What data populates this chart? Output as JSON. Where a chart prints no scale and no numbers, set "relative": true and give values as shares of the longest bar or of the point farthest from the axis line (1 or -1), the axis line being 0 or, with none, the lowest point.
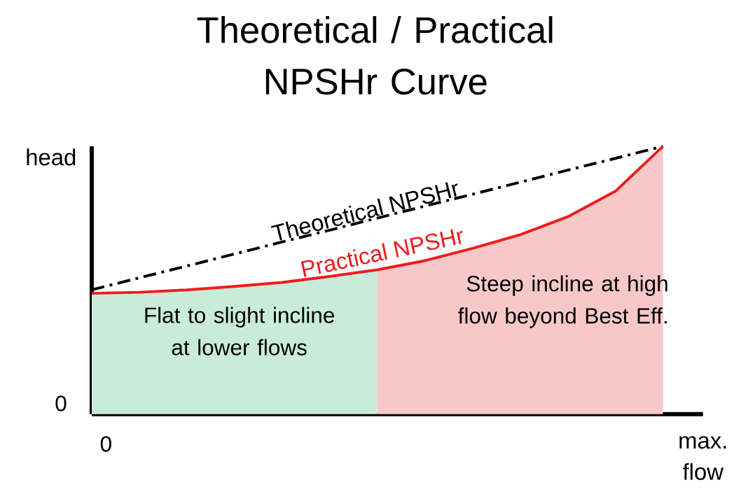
{
  "chart_data": {
    "type": "line",
    "title": "Theoretical / Practical NPSHr Curve",
    "relative": true,
    "xlabel": "max. flow",
    "ylabel": "head",
    "categories": [
      null,
      null,
      null,
      null,
      null,
      null,
      null,
      null,
      null,
      null,
      null,
      null,
      null
    ],
    "series": [
      {
        "type": "area",
        "color": "#c9ecd8",
        "values": [
          0.451,
          0.455,
          0.464,
          0.477,
          0.492,
          0.514,
          0.539,
          null,
          null,
          null,
          null,
          null,
          null
        ]
      },
      {
        "type": "area",
        "color": "#f8c8c8",
        "values": [
          null,
          null,
          null,
          null,
          null,
          null,
          0.539,
          0.573,
          0.619,
          0.67,
          0.737,
          0.832,
          1.0
        ]
      },
      {
        "name": "Theoretical NPSHr",
        "color": "#000000",
        "line_style": "dashed",
        "values": [
          0.464,
          0.509,
          0.553,
          0.598,
          0.643,
          0.687,
          0.732,
          0.777,
          0.821,
          0.866,
          0.911,
          0.955,
          1.0
        ]
      },
      {
        "name": "Practical NPSHr",
        "color": "#ee1c1c",
        "line_style": "solid",
        "values": [
          0.451,
          0.455,
          0.464,
          0.477,
          0.492,
          0.514,
          0.539,
          0.573,
          0.619,
          0.67,
          0.737,
          0.832,
          1.0
        ]
      }
    ],
    "annotations": [
      "Flat to slight incline at lower flows",
      "Steep incline at high flow beyond Best Eff.",
      "0",
      "0"
    ]
  }
}
